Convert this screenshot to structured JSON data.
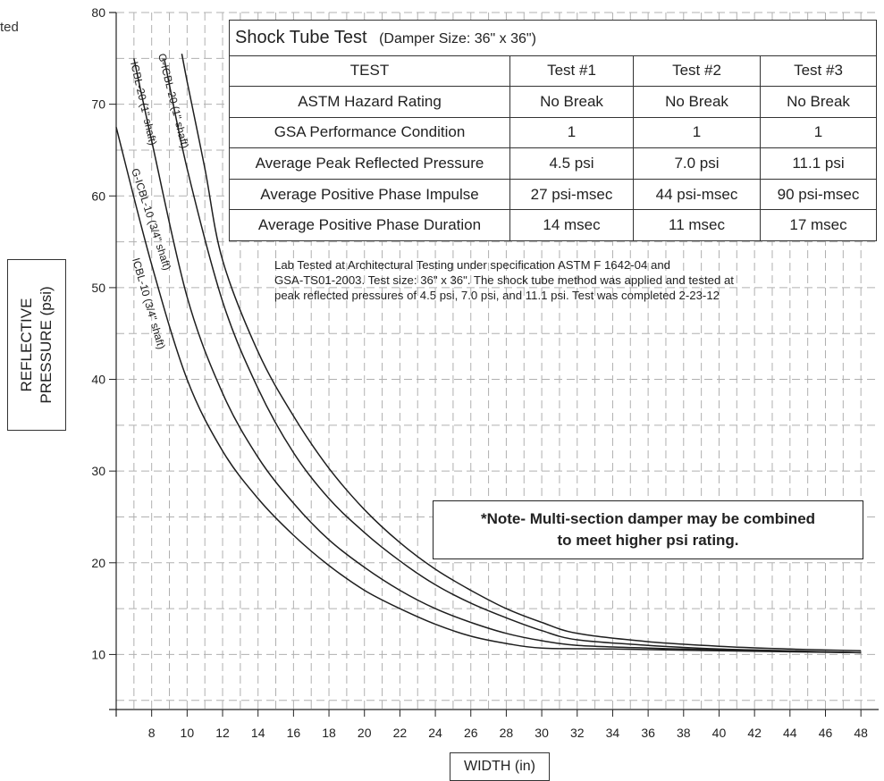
{
  "corner_text": "ted",
  "chart_data": {
    "type": "line",
    "title": "",
    "xlabel": "WIDTH (in)",
    "ylabel": "REFLECTIVE PRESSURE (psi)",
    "xlim": [
      6,
      49
    ],
    "ylim": [
      4,
      80
    ],
    "x_ticks": [
      8,
      10,
      12,
      14,
      16,
      18,
      20,
      22,
      24,
      26,
      28,
      30,
      32,
      34,
      36,
      38,
      40,
      42,
      44,
      46,
      48
    ],
    "y_ticks": [
      10,
      20,
      30,
      40,
      50,
      60,
      70,
      80
    ],
    "grid": true,
    "series": [
      {
        "name": "ICBL-10 (3/4\" shaft)",
        "x": [
          6,
          8,
          10,
          12,
          14,
          16,
          18,
          20,
          22,
          24,
          26,
          28,
          30,
          34,
          40,
          48
        ],
        "y": [
          67.5,
          52.5,
          40,
          32.2,
          27,
          23,
          19.7,
          17,
          15,
          13.3,
          12,
          11.2,
          10.7,
          10.6,
          10.4,
          10.2
        ]
      },
      {
        "name": "G-ICBL-10 (3/4\" shaft)",
        "x": [
          7,
          8,
          10,
          12,
          14,
          16,
          18,
          20,
          22,
          24,
          26,
          28,
          30,
          32,
          36,
          40,
          48
        ],
        "y": [
          75,
          66,
          49,
          38.5,
          31.5,
          26.5,
          22.5,
          19.5,
          17,
          15,
          13.5,
          12.3,
          11.5,
          11,
          10.7,
          10.5,
          10.2
        ]
      },
      {
        "name": "ICBL-20 (1\" shaft)",
        "x": [
          8.7,
          10,
          12,
          14,
          16,
          18,
          20,
          22,
          24,
          26,
          28,
          30,
          32,
          36,
          40,
          44,
          48
        ],
        "y": [
          75,
          63,
          48.5,
          39,
          32,
          27,
          23.3,
          20.2,
          17.6,
          15.6,
          14,
          12.6,
          11.6,
          11,
          10.6,
          10.4,
          10.2
        ]
      },
      {
        "name": "G-ICBL-20 (1\" shaft)",
        "x": [
          9.7,
          10,
          11,
          12,
          14,
          16,
          18,
          20,
          22,
          24,
          26,
          28,
          30,
          32,
          36,
          40,
          44,
          48
        ],
        "y": [
          75.5,
          72.5,
          63,
          53,
          43,
          36,
          30.3,
          25.8,
          22.2,
          19.3,
          17,
          15,
          13.5,
          12.3,
          11.4,
          10.9,
          10.6,
          10.4
        ]
      }
    ]
  },
  "table": {
    "title": "Shock Tube Test",
    "subtitle": "(Damper Size: 36\" x 36\")",
    "header": [
      "TEST",
      "Test #1",
      "Test #2",
      "Test #3"
    ],
    "rows": [
      [
        "ASTM Hazard Rating",
        "No Break",
        "No Break",
        "No Break"
      ],
      [
        "GSA Performance Condition",
        "1",
        "1",
        "1"
      ],
      [
        "Average Peak Reflected Pressure",
        "4.5 psi",
        "7.0 psi",
        "11.1 psi"
      ],
      [
        "Average Positive Phase Impulse",
        "27 psi-msec",
        "44 psi-msec",
        "90 psi-msec"
      ],
      [
        "Average Positive Phase Duration",
        "14 msec",
        "11 msec",
        "17 msec"
      ]
    ]
  },
  "lab_note": {
    "line1": "Lab Tested at Architectural Testing under specification ASTM F 1642-04 and",
    "line2": "GSA-TS01-2003.  Test size: 36\" x 36\". The shock tube method was applied and tested at",
    "line3": "peak reflected pressures of  4.5 psi, 7.0 psi, and 11.1 psi.  Test was completed  2-23-12"
  },
  "note_box": {
    "line1": "*Note- Multi-section damper may be combined",
    "line2": "to meet higher psi rating."
  },
  "ylabel_lines": [
    "REFLECTIVE",
    "PRESSURE (psi)"
  ],
  "xlabel": "WIDTH (in)"
}
